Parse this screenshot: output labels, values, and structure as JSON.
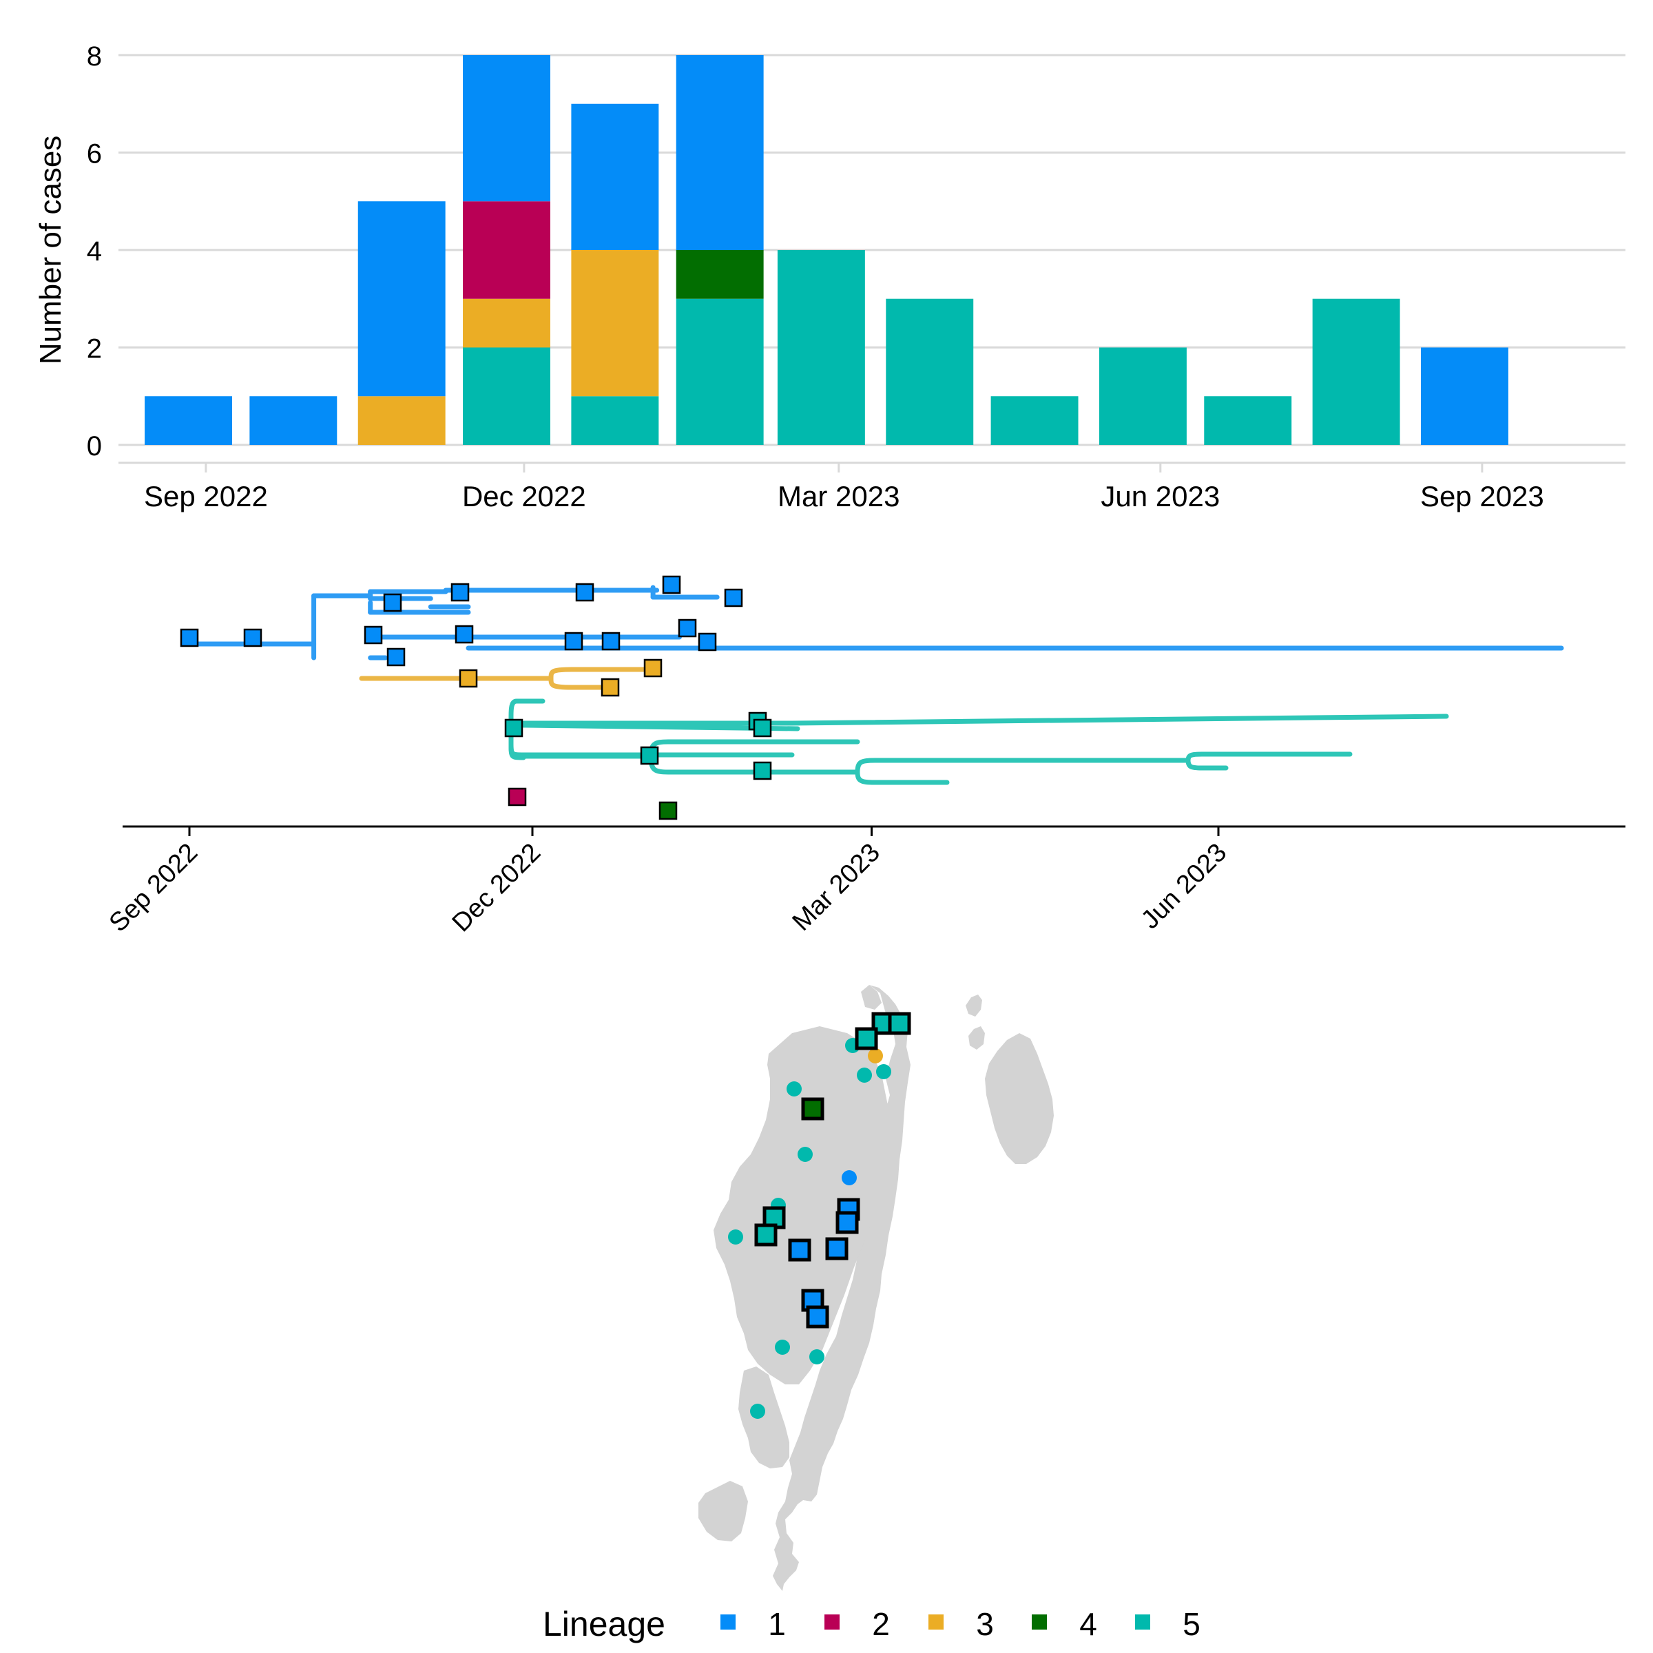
{
  "colors": {
    "lineage_1": "#048cf8",
    "lineage_2": "#b90055",
    "lineage_3": "#ebad25",
    "lineage_4": "#026e01",
    "lineage_5": "#01b9ad",
    "tree_1": "#2e9cf4",
    "tree_3": "#ebb646",
    "tree_5": "#2ec6b7",
    "land": "#d3d3d3",
    "grid": "#d9d9d9"
  },
  "chart_data": [
    {
      "type": "bar",
      "stacked": true,
      "ylabel": "Number of cases",
      "ylim": [
        0,
        8
      ],
      "yticks": [
        0,
        2,
        4,
        6,
        8
      ],
      "xticks": [
        {
          "date": "2022-09-01",
          "label": "Sep 2022"
        },
        {
          "date": "2022-12-01",
          "label": "Dec 2022"
        },
        {
          "date": "2023-03-01",
          "label": "Mar 2023"
        },
        {
          "date": "2023-06-01",
          "label": "Jun 2023"
        },
        {
          "date": "2023-09-01",
          "label": "Sep 2023"
        }
      ],
      "xlim": [
        "2022-08-07",
        "2023-10-12"
      ],
      "bar_width_days": 25,
      "grid": "horizontal",
      "bins": [
        {
          "date": "2022-08-27",
          "segments": [
            {
              "lineage": "1",
              "value": 1
            }
          ]
        },
        {
          "date": "2022-09-26",
          "segments": [
            {
              "lineage": "1",
              "value": 1
            }
          ]
        },
        {
          "date": "2022-10-27",
          "segments": [
            {
              "lineage": "3",
              "value": 1
            },
            {
              "lineage": "1",
              "value": 4
            }
          ]
        },
        {
          "date": "2022-11-26",
          "segments": [
            {
              "lineage": "5",
              "value": 2
            },
            {
              "lineage": "3",
              "value": 1
            },
            {
              "lineage": "2",
              "value": 2
            },
            {
              "lineage": "1",
              "value": 3
            }
          ]
        },
        {
          "date": "2022-12-27",
          "segments": [
            {
              "lineage": "5",
              "value": 1
            },
            {
              "lineage": "3",
              "value": 3
            },
            {
              "lineage": "1",
              "value": 3
            }
          ]
        },
        {
          "date": "2023-01-26",
          "segments": [
            {
              "lineage": "5",
              "value": 3
            },
            {
              "lineage": "4",
              "value": 1
            },
            {
              "lineage": "1",
              "value": 4
            }
          ]
        },
        {
          "date": "2023-02-24",
          "segments": [
            {
              "lineage": "5",
              "value": 4
            }
          ]
        },
        {
          "date": "2023-03-27",
          "segments": [
            {
              "lineage": "5",
              "value": 3
            }
          ]
        },
        {
          "date": "2023-04-26",
          "segments": [
            {
              "lineage": "5",
              "value": 1
            }
          ]
        },
        {
          "date": "2023-05-27",
          "segments": [
            {
              "lineage": "5",
              "value": 2
            }
          ]
        },
        {
          "date": "2023-06-26",
          "segments": [
            {
              "lineage": "5",
              "value": 1
            }
          ]
        },
        {
          "date": "2023-07-27",
          "segments": [
            {
              "lineage": "5",
              "value": 3
            }
          ]
        },
        {
          "date": "2023-08-27",
          "segments": [
            {
              "lineage": "1",
              "value": 2
            }
          ]
        }
      ]
    },
    {
      "type": "line",
      "subtype": "time-scaled phylogeny",
      "xticks": [
        {
          "date": "2022-09-01",
          "label": "Sep 2022"
        },
        {
          "date": "2022-12-01",
          "label": "Dec 2022"
        },
        {
          "date": "2023-03-01",
          "label": "Mar 2023"
        },
        {
          "date": "2023-06-01",
          "label": "Jun 2023"
        }
      ],
      "xlim": [
        "2022-08-12",
        "2023-10-16"
      ],
      "tick_label_rotation": -45,
      "branches": [
        {
          "lineage": "1",
          "path": [
            [
              "2022-09-01",
              0.5
            ],
            [
              "2022-09-18",
              0.5
            ]
          ]
        },
        {
          "lineage": "1",
          "path": [
            [
              "2022-09-18",
              0.5
            ],
            [
              "2022-10-04",
              0.5
            ]
          ]
        },
        {
          "lineage": "1",
          "path": [
            [
              "2022-10-04",
              -3.0
            ],
            [
              "2022-10-04",
              1.5
            ]
          ]
        },
        {
          "lineage": "1",
          "path": [
            [
              "2022-10-04",
              -3.0
            ],
            [
              "2022-10-19",
              -3.0
            ]
          ]
        },
        {
          "lineage": "1",
          "path": [
            [
              "2022-10-19",
              -3.3
            ],
            [
              "2022-10-19",
              -2.8
            ]
          ]
        },
        {
          "lineage": "1",
          "path": [
            [
              "2022-10-19",
              -3.3
            ],
            [
              "2022-10-24",
              -3.3
            ]
          ]
        },
        {
          "lineage": "1",
          "path": [
            [
              "2022-10-24",
              -3.3
            ],
            [
              "2022-11-08",
              -3.3
            ]
          ]
        },
        {
          "lineage": "1",
          "path": [
            [
              "2022-11-08",
              -3.4
            ],
            [
              "2022-12-11",
              -3.4
            ]
          ]
        },
        {
          "lineage": "1",
          "path": [
            [
              "2022-12-11",
              -3.4
            ],
            [
              "2023-01-03",
              -3.4
            ]
          ]
        },
        {
          "lineage": "1",
          "path": [
            [
              "2022-12-11",
              -3.4
            ],
            [
              "2023-01-02",
              -3.4
            ]
          ]
        },
        {
          "lineage": "1",
          "path": [
            [
              "2023-01-02",
              -3.6
            ],
            [
              "2023-01-02",
              -2.9
            ]
          ]
        },
        {
          "lineage": "1",
          "path": [
            [
              "2023-01-02",
              -2.9
            ],
            [
              "2023-01-19",
              -2.9
            ]
          ]
        },
        {
          "lineage": "1",
          "path": [
            [
              "2022-10-19",
              -2.8
            ],
            [
              "2022-10-24",
              -2.8
            ]
          ]
        },
        {
          "lineage": "1",
          "path": [
            [
              "2022-10-24",
              -2.8
            ],
            [
              "2022-11-04",
              -2.8
            ]
          ]
        },
        {
          "lineage": "1",
          "path": [
            [
              "2022-11-04",
              -2.2
            ],
            [
              "2022-11-14",
              -2.2
            ]
          ]
        },
        {
          "lineage": "1",
          "path": [
            [
              "2022-10-19",
              -1.8
            ],
            [
              "2022-11-14",
              -1.8
            ]
          ]
        },
        {
          "lineage": "1",
          "path": [
            [
              "2022-10-19",
              -2.5
            ],
            [
              "2022-10-19",
              -1.8
            ]
          ]
        },
        {
          "lineage": "1",
          "path": [
            [
              "2022-10-19",
              0.0
            ],
            [
              "2022-11-14",
              0.0
            ]
          ]
        },
        {
          "lineage": "1",
          "path": [
            [
              "2022-11-14",
              0.0
            ],
            [
              "2022-11-14",
              0.0
            ]
          ]
        },
        {
          "lineage": "1",
          "path": [
            [
              "2022-11-14",
              0.0
            ],
            [
              "2023-01-09",
              0.0
            ]
          ]
        },
        {
          "lineage": "1",
          "path": [
            [
              "2022-11-14",
              0.8
            ],
            [
              "2023-08-31",
              0.8
            ]
          ]
        },
        {
          "lineage": "1",
          "path": [
            [
              "2022-10-19",
              1.5
            ],
            [
              "2022-10-23",
              1.5
            ]
          ]
        }
      ],
      "tips": [
        {
          "lineage": "1",
          "date": "2022-09-01",
          "y": 0.5
        },
        {
          "lineage": "1",
          "date": "2022-09-18",
          "y": 0.5
        },
        {
          "lineage": "1",
          "date": "2022-10-23",
          "y": -2.4
        },
        {
          "lineage": "1",
          "date": "2022-11-11",
          "y": -3.0
        },
        {
          "lineage": "1",
          "date": "2022-12-13",
          "y": -3.0
        },
        {
          "lineage": "1",
          "date": "2023-01-05",
          "y": -3.5
        },
        {
          "lineage": "1",
          "date": "2023-01-21",
          "y": -2.6
        },
        {
          "lineage": "1",
          "date": "2022-10-18",
          "y": 0.4
        },
        {
          "lineage": "1",
          "date": "2022-11-11",
          "y": 0.4
        },
        {
          "lineage": "1",
          "date": "2022-12-11",
          "y": 0.8
        },
        {
          "lineage": "1",
          "date": "2022-12-21",
          "y": 0.8
        },
        {
          "lineage": "1",
          "date": "2023-01-09",
          "y": 0.0
        },
        {
          "lineage": "1",
          "date": "2023-01-13",
          "y": 0.8
        },
        {
          "lineage": "1",
          "date": "2022-10-24",
          "y": 1.5
        },
        {
          "lineage": "3",
          "date": "2022-11-12",
          "y": 2.6
        },
        {
          "lineage": "3",
          "date": "2022-12-21",
          "y": 3.1
        },
        {
          "lineage": "3",
          "date": "2023-01-01",
          "y": 1.9
        },
        {
          "lineage": "5",
          "date": "2022-11-25",
          "y": 5.6
        },
        {
          "lineage": "5",
          "date": "2023-01-30",
          "y": 5.3
        },
        {
          "lineage": "5",
          "date": "2023-01-31",
          "y": 5.6
        },
        {
          "lineage": "5",
          "date": "2022-12-31",
          "y": 7.2
        },
        {
          "lineage": "5",
          "date": "2023-01-31",
          "y": 8.0
        },
        {
          "lineage": "2",
          "date": "2022-11-26",
          "y": 9.5
        },
        {
          "lineage": "4",
          "date": "2023-01-05",
          "y": 10.3
        }
      ]
    }
  ],
  "map": {
    "points": [
      {
        "lineage": "5",
        "shape": "square"
      },
      {
        "lineage": "5",
        "shape": "square"
      },
      {
        "lineage": "5",
        "shape": "square"
      },
      {
        "lineage": "4",
        "shape": "square"
      },
      {
        "lineage": "1",
        "shape": "square"
      },
      {
        "lineage": "1",
        "shape": "square"
      },
      {
        "lineage": "5",
        "shape": "square"
      },
      {
        "lineage": "5",
        "shape": "square"
      },
      {
        "lineage": "1",
        "shape": "square"
      },
      {
        "lineage": "1",
        "shape": "square"
      },
      {
        "lineage": "1",
        "shape": "square"
      },
      {
        "lineage": "1",
        "shape": "square"
      },
      {
        "lineage": "5",
        "shape": "circle"
      },
      {
        "lineage": "3",
        "shape": "circle"
      },
      {
        "lineage": "5",
        "shape": "circle"
      },
      {
        "lineage": "5",
        "shape": "circle"
      },
      {
        "lineage": "5",
        "shape": "circle"
      },
      {
        "lineage": "5",
        "shape": "circle"
      },
      {
        "lineage": "1",
        "shape": "circle"
      },
      {
        "lineage": "5",
        "shape": "circle"
      },
      {
        "lineage": "5",
        "shape": "circle"
      },
      {
        "lineage": "5",
        "shape": "circle"
      },
      {
        "lineage": "5",
        "shape": "circle"
      },
      {
        "lineage": "5",
        "shape": "circle"
      }
    ]
  },
  "legend": {
    "title": "Lineage",
    "placement": "bottom",
    "entries": [
      {
        "label": "1",
        "color": "#048cf8"
      },
      {
        "label": "2",
        "color": "#b90055"
      },
      {
        "label": "3",
        "color": "#ebad25"
      },
      {
        "label": "4",
        "color": "#026e01"
      },
      {
        "label": "5",
        "color": "#01b9ad"
      }
    ]
  }
}
